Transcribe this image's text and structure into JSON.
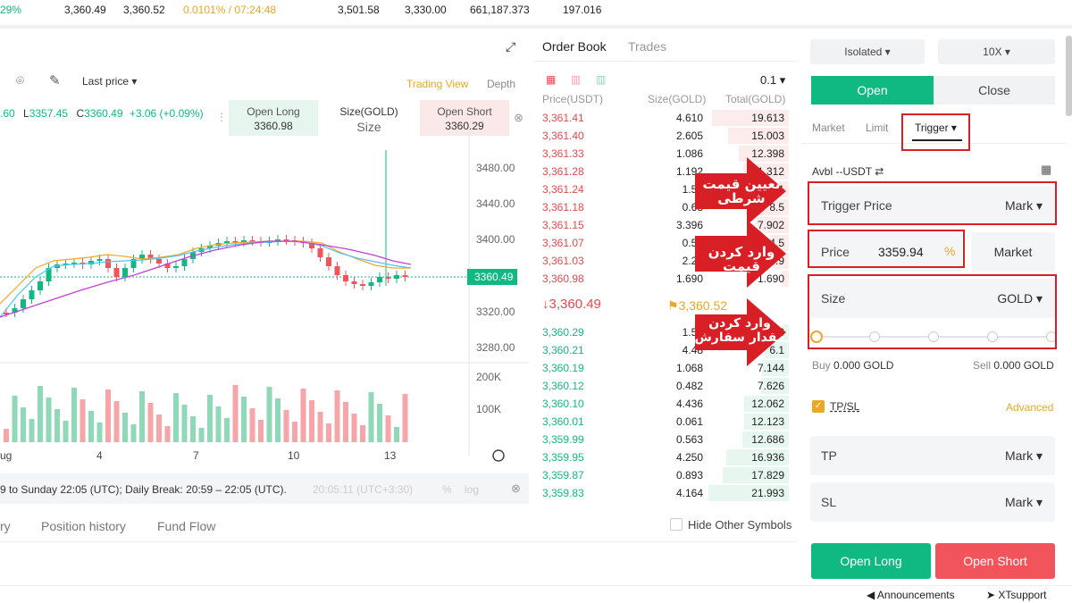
{
  "ticker": {
    "change_pct": "29%",
    "v1": "3,360.49",
    "v2": "3,360.52",
    "funding": "0.0101% / 07:24:48",
    "high": "3,501.58",
    "low": "3,330.00",
    "volume": "661,187.373",
    "v3": "197.016"
  },
  "chart": {
    "price_type": "Last price",
    "trading_view": "Trading View",
    "depth": "Depth",
    "ohlc_prefix": ".60",
    "low_label": "L",
    "low_val": "3357.45",
    "close_label": "C",
    "close_val": "3360.49",
    "change": "+3.06 (+0.09%)",
    "open_long_label": "Open Long",
    "open_long_price": "3360.98",
    "size_label": "Size(GOLD)",
    "size_placeholder": "Size",
    "open_short_label": "Open Short",
    "open_short_price": "3360.29",
    "y_ticks": [
      "3480.00",
      "3440.00",
      "3400.00",
      "3320.00",
      "3280.00"
    ],
    "current_price": "3360.49",
    "vol_ticks": [
      "200K",
      "100K"
    ],
    "x_ticks": [
      "ug",
      "4",
      "7",
      "10",
      "13"
    ],
    "session_text": "9 to Sunday 22:05 (UTC); Daily Break: 20:59 – 22:05 (UTC).",
    "clock": "20:05:11 (UTC+3:30)",
    "pct": "%",
    "log": "log"
  },
  "bottom_tabs": [
    "ry",
    "Position history",
    "Fund Flow"
  ],
  "hide_other": "Hide Other Symbols",
  "orderbook": {
    "tab_ob": "Order Book",
    "tab_trades": "Trades",
    "precision": "0.1",
    "col_price": "Price(USDT)",
    "col_size": "Size(GOLD)",
    "col_total": "Total(GOLD)",
    "asks": [
      {
        "p": "3,361.41",
        "s": "4.610",
        "t": "19.613",
        "w": 0.95
      },
      {
        "p": "3,361.40",
        "s": "2.605",
        "t": "15.003",
        "w": 0.75
      },
      {
        "p": "3,361.33",
        "s": "1.086",
        "t": "12.398",
        "w": 0.62
      },
      {
        "p": "3,361.28",
        "s": "1.192",
        "t": "11.312",
        "w": 0.57
      },
      {
        "p": "3,361.24",
        "s": "1.52",
        "t": "10.1",
        "w": 0.5
      },
      {
        "p": "3,361.18",
        "s": "0.68",
        "t": "8.5",
        "w": 0.43
      },
      {
        "p": "3,361.15",
        "s": "3.396",
        "t": "7.902",
        "w": 0.4
      },
      {
        "p": "3,361.07",
        "s": "0.53",
        "t": "4.5",
        "w": 0.23
      },
      {
        "p": "3,361.03",
        "s": "2.27",
        "t": "3.9",
        "w": 0.2
      },
      {
        "p": "3,360.98",
        "s": "1.690",
        "t": "1.690",
        "w": 0.09
      }
    ],
    "mid_price": "3,360.49",
    "mark_price": "3,360.52",
    "bids": [
      {
        "p": "3,360.29",
        "s": "1.59",
        "t": "1.6",
        "w": 0.08
      },
      {
        "p": "3,360.21",
        "s": "4.48",
        "t": "6.1",
        "w": 0.3
      },
      {
        "p": "3,360.19",
        "s": "1.068",
        "t": "7.144",
        "w": 0.33
      },
      {
        "p": "3,360.12",
        "s": "0.482",
        "t": "7.626",
        "w": 0.35
      },
      {
        "p": "3,360.10",
        "s": "4.436",
        "t": "12.062",
        "w": 0.55
      },
      {
        "p": "3,360.01",
        "s": "0.061",
        "t": "12.123",
        "w": 0.56
      },
      {
        "p": "3,359.99",
        "s": "0.563",
        "t": "12.686",
        "w": 0.58
      },
      {
        "p": "3,359.95",
        "s": "4.250",
        "t": "16.936",
        "w": 0.78
      },
      {
        "p": "3,359.87",
        "s": "0.893",
        "t": "17.829",
        "w": 0.82
      },
      {
        "p": "3,359.83",
        "s": "4.164",
        "t": "21.993",
        "w": 1.0
      }
    ]
  },
  "panel": {
    "margin_mode": "Isolated",
    "leverage": "10X",
    "open": "Open",
    "close": "Close",
    "tab_market": "Market",
    "tab_limit": "Limit",
    "tab_trigger": "Trigger",
    "avbl": "Avbl  --USDT",
    "trigger_price": "Trigger Price",
    "trigger_mark": "Mark",
    "price_label": "Price",
    "price_value": "3359.94",
    "market_btn": "Market",
    "size_label": "Size",
    "size_unit": "GOLD",
    "buy_label": "Buy",
    "buy_val": "0.000 GOLD",
    "sell_label": "Sell",
    "sell_val": "0.000 GOLD",
    "tpsl": "TP/SL",
    "advanced": "Advanced",
    "tp": "TP",
    "tp_mark": "Mark",
    "sl": "SL",
    "sl_mark": "Mark",
    "open_long": "Open Long",
    "open_short": "Open Short"
  },
  "annotations": {
    "a1_line1": "تعیین قیمت",
    "a1_line2": "شرطی",
    "a2_line1": "وارد کردن",
    "a2_line2": "قیمت",
    "a3_line1": "وارد کردن",
    "a3_line2": "مقدار سفارش"
  },
  "footer": {
    "announcements": "Announcements",
    "support": "XTsupport"
  },
  "colors": {
    "green": "#10b981",
    "red": "#e5484d",
    "annot": "#d81f26"
  }
}
